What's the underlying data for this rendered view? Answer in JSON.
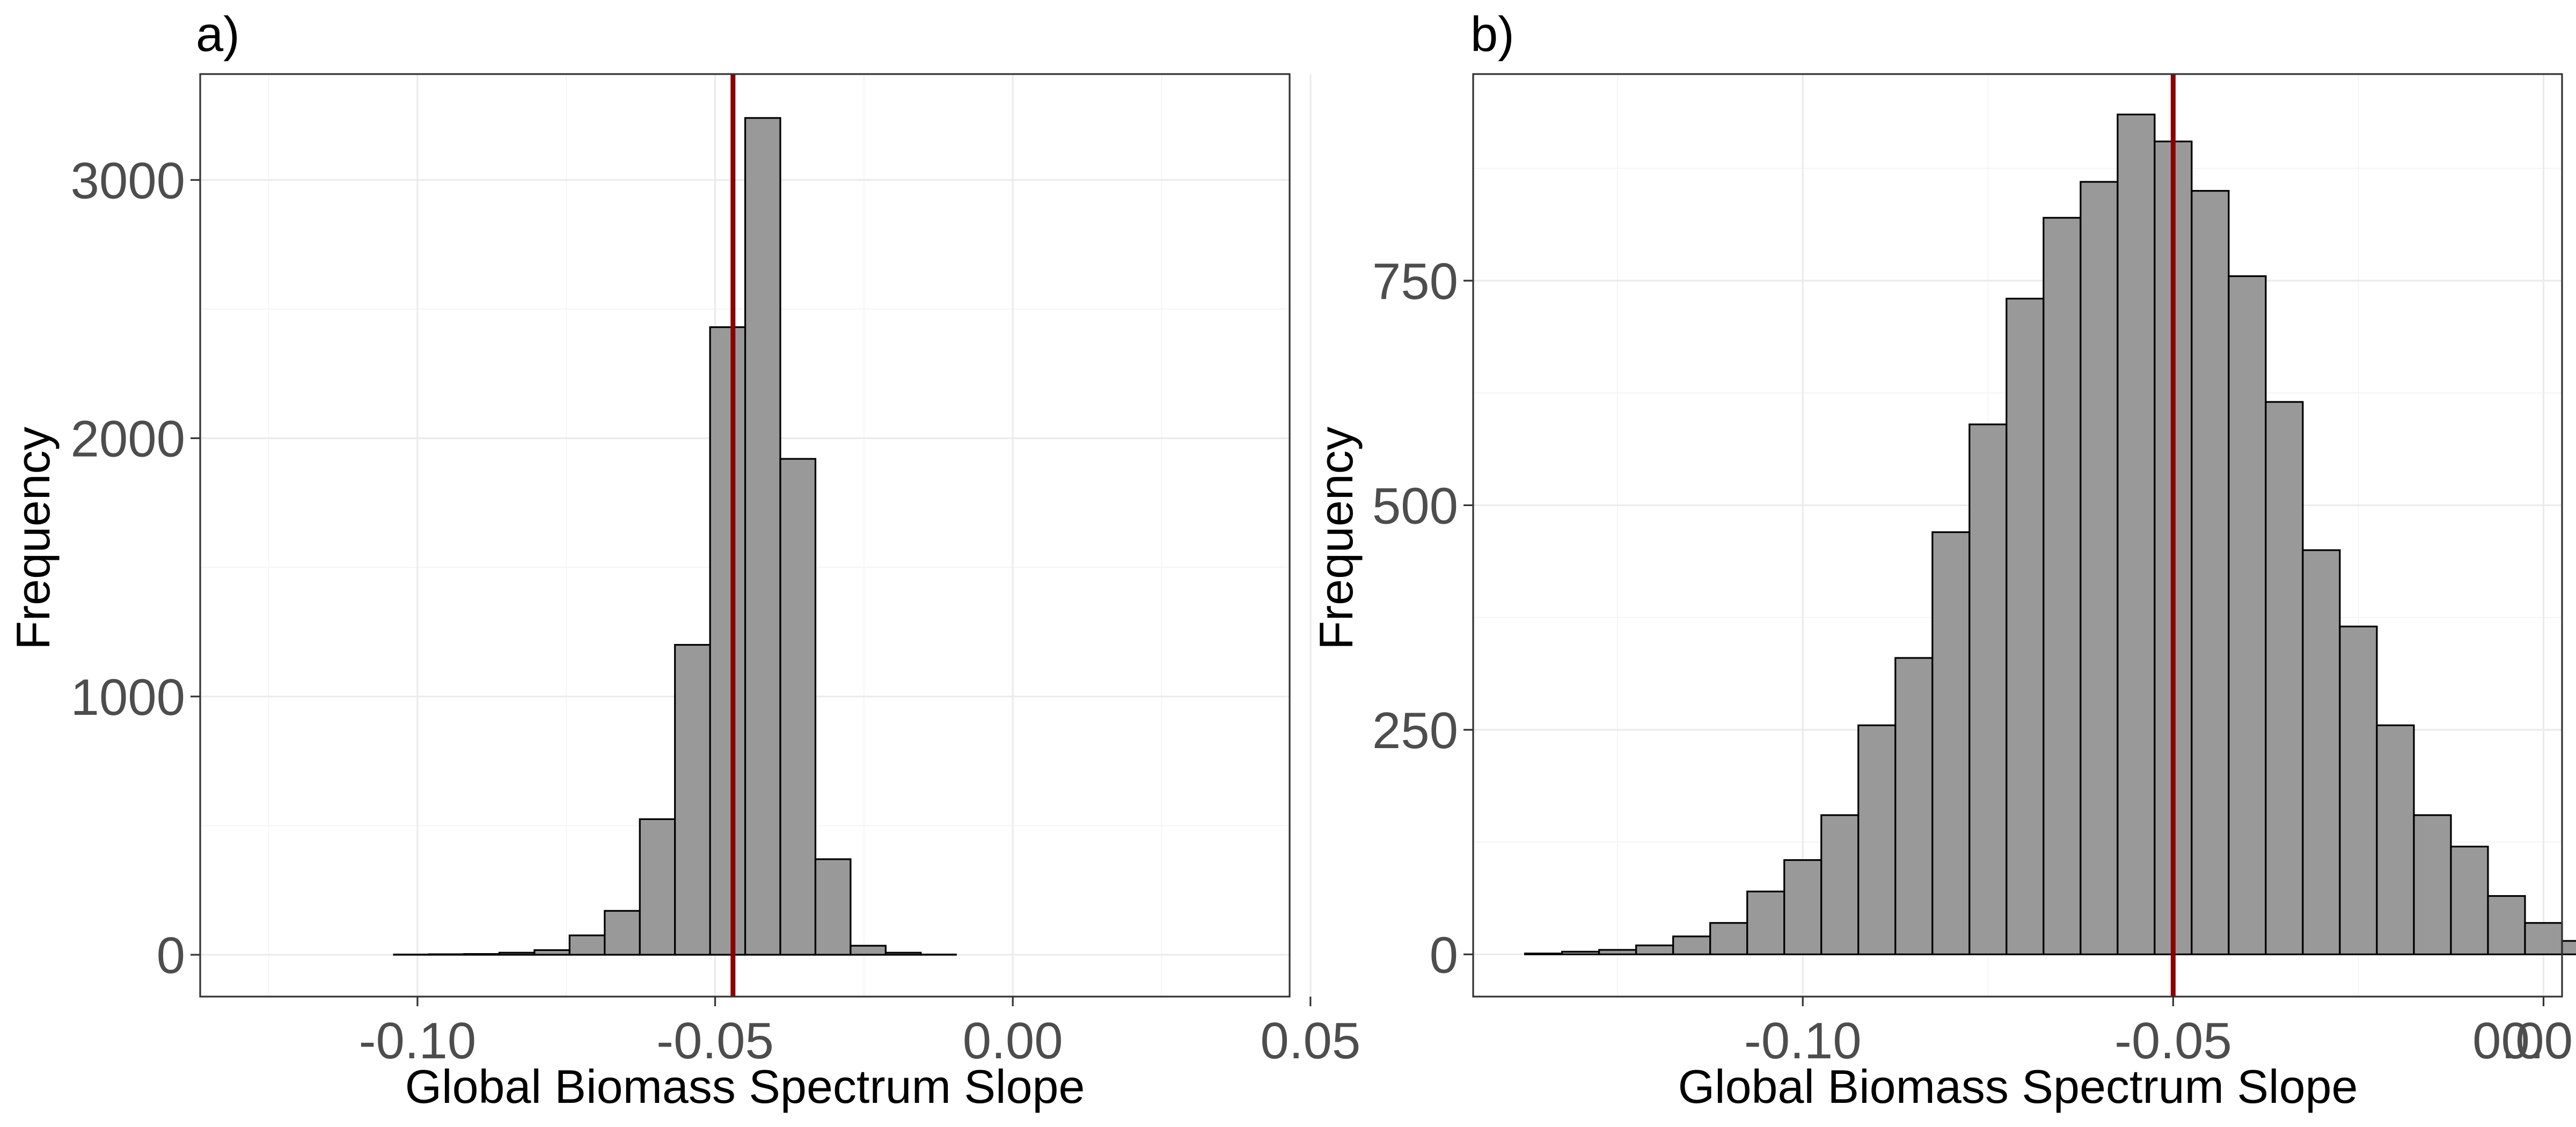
{
  "chart_data": [
    {
      "type": "bar",
      "panel_label": "a)",
      "xlabel": "Global Biomass Spectrum Slope",
      "ylabel": "Frequency",
      "xlim": [
        -0.1365,
        0.0465
      ],
      "ylim": [
        -162,
        3410
      ],
      "x_ticks": [
        -0.1,
        -0.05,
        0.0,
        0.05
      ],
      "x_tick_labels": [
        "-0.10",
        "-0.05",
        "0.00",
        "0.05"
      ],
      "y_ticks": [
        0,
        1000,
        2000,
        3000
      ],
      "y_tick_labels": [
        "0",
        "1000",
        "2000",
        "3000"
      ],
      "bin_width": 0.0059,
      "bin_centers": [
        -0.1305,
        -0.1246,
        -0.1187,
        -0.1128,
        -0.1069,
        -0.101,
        -0.0951,
        -0.0892,
        -0.0833,
        -0.0774,
        -0.0715,
        -0.0656,
        -0.0597,
        -0.0538,
        -0.0479,
        -0.042,
        -0.0361,
        -0.0302,
        -0.0243,
        -0.0184,
        -0.0125,
        -0.0066,
        -0.0007,
        0.0052,
        0.0111,
        0.017,
        0.0229,
        0.0288,
        0.0347,
        0.0406
      ],
      "values": [
        0,
        0,
        0,
        0,
        0,
        1,
        2,
        3,
        8,
        18,
        75,
        170,
        525,
        1200,
        2430,
        3240,
        1920,
        370,
        35,
        8,
        1,
        0,
        0,
        0,
        0,
        0,
        0,
        0,
        0,
        0
      ],
      "grid": true,
      "vline": {
        "x": -0.047,
        "color": "#8B0000"
      },
      "bar_fill": "#999999",
      "bar_edge": "#000000"
    },
    {
      "type": "bar",
      "panel_label": "b)",
      "xlabel": "Global Biomass Spectrum Slope",
      "ylabel": "Frequency",
      "xlim": [
        -0.1445,
        0.0025
      ],
      "ylim": [
        -47,
        980
      ],
      "x_ticks": [
        -0.1,
        -0.05,
        0.0
      ],
      "x_tick_labels": [
        "-0.10",
        "-0.05",
        "0.00",
        "0.0"
      ],
      "x_tick_label_positions": [
        -0.1,
        -0.05,
        0.0,
        0.025
      ],
      "y_ticks": [
        0,
        250,
        500,
        750
      ],
      "y_tick_labels": [
        "0",
        "250",
        "500",
        "750"
      ],
      "bin_width": 0.005,
      "bin_centers": [
        -0.135,
        -0.13,
        -0.125,
        -0.12,
        -0.115,
        -0.11,
        -0.105,
        -0.1,
        -0.095,
        -0.09,
        -0.085,
        -0.08,
        -0.075,
        -0.07,
        -0.065,
        -0.06,
        -0.055,
        -0.05,
        -0.045,
        -0.04,
        -0.035,
        -0.03,
        -0.025,
        -0.02,
        -0.015,
        -0.01,
        -0.005,
        0.0,
        0.005,
        0.01,
        0.015,
        0.02,
        0.025,
        0.03,
        0.035
      ],
      "values": [
        1,
        3,
        5,
        10,
        20,
        35,
        70,
        105,
        155,
        255,
        330,
        470,
        590,
        730,
        820,
        860,
        935,
        905,
        850,
        755,
        615,
        450,
        365,
        255,
        155,
        120,
        65,
        35,
        15,
        8,
        3,
        2,
        1,
        1,
        0
      ],
      "grid": true,
      "vline": {
        "x": -0.05,
        "color": "#8B0000"
      },
      "bar_fill": "#999999",
      "bar_edge": "#000000"
    }
  ]
}
